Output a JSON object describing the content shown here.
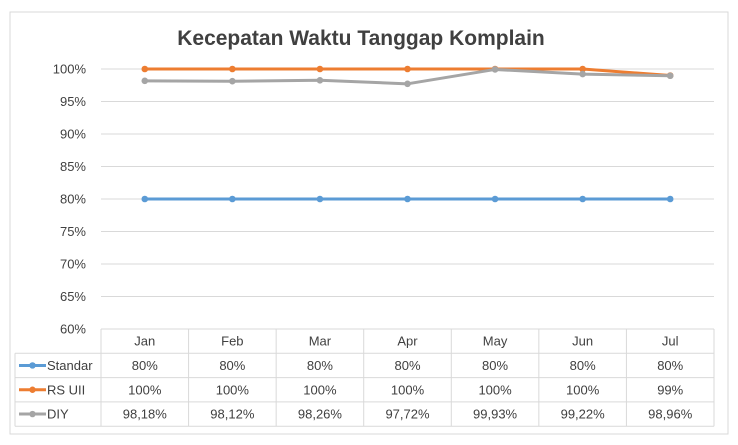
{
  "chart_data": {
    "type": "line",
    "title": "Kecepatan Waktu Tanggap Komplain",
    "categories": [
      "Jan",
      "Feb",
      "Mar",
      "Apr",
      "May",
      "Jun",
      "Jul"
    ],
    "y_ticks": [
      "60%",
      "65%",
      "70%",
      "75%",
      "80%",
      "85%",
      "90%",
      "95%",
      "100%"
    ],
    "ylim": [
      60,
      100
    ],
    "grid": true,
    "legend_placement": "data-table-bottom",
    "series": [
      {
        "name": "Standar",
        "color": "#5B9BD5",
        "values": [
          80,
          80,
          80,
          80,
          80,
          80,
          80
        ],
        "labels": [
          "80%",
          "80%",
          "80%",
          "80%",
          "80%",
          "80%",
          "80%"
        ]
      },
      {
        "name": "RS UII",
        "color": "#ED7D31",
        "values": [
          100,
          100,
          100,
          100,
          100,
          100,
          99
        ],
        "labels": [
          "100%",
          "100%",
          "100%",
          "100%",
          "100%",
          "100%",
          "99%"
        ]
      },
      {
        "name": "DIY",
        "color": "#A5A5A5",
        "values": [
          98.18,
          98.12,
          98.26,
          97.72,
          99.93,
          99.22,
          98.96
        ],
        "labels": [
          "98,18%",
          "98,12%",
          "98,26%",
          "97,72%",
          "99,93%",
          "99,22%",
          "98,96%"
        ]
      }
    ]
  }
}
